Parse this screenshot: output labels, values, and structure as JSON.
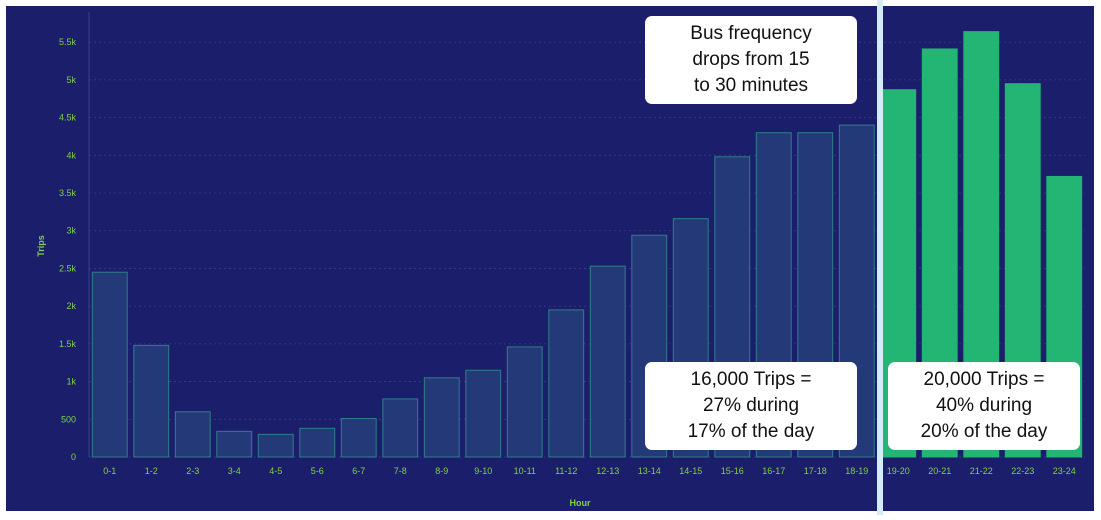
{
  "chart_data": {
    "type": "bar",
    "xlabel": "Hour",
    "ylabel": "Trips",
    "ylim": [
      0,
      5900
    ],
    "y_ticks": [
      0,
      500,
      1000,
      1500,
      2000,
      2500,
      3000,
      3500,
      4000,
      4500,
      5000,
      5500
    ],
    "y_tick_labels": [
      "0",
      "500",
      "1k",
      "1.5k",
      "2k",
      "2.5k",
      "3k",
      "3.5k",
      "4k",
      "4.5k",
      "5k",
      "5.5k"
    ],
    "categories": [
      "0-1",
      "1-2",
      "2-3",
      "3-4",
      "4-5",
      "5-6",
      "6-7",
      "7-8",
      "8-9",
      "9-10",
      "10-11",
      "11-12",
      "12-13",
      "13-14",
      "14-15",
      "15-16",
      "16-17",
      "17-18",
      "18-19",
      "19-20",
      "20-21",
      "21-22",
      "22-23",
      "23-24"
    ],
    "values": [
      2450,
      1480,
      600,
      340,
      300,
      380,
      510,
      770,
      1050,
      1150,
      1460,
      1950,
      2530,
      2940,
      3160,
      3980,
      4300,
      4300,
      4400,
      4870,
      5410,
      5640,
      4950,
      3720
    ],
    "highlight_from_index": 19,
    "grid": true,
    "annotations": [
      {
        "id": "frequency",
        "lines": [
          "Bus frequency",
          "drops from 15",
          "to 30 minutes"
        ]
      },
      {
        "id": "day-share",
        "lines": [
          "16,000 Trips =",
          "27% during",
          "17% of the day"
        ]
      },
      {
        "id": "night-share",
        "lines": [
          "20,000 Trips =",
          "40% during",
          "20% of the day"
        ]
      }
    ]
  },
  "colors": {
    "background": "#1b1f6b",
    "bar_default": "#243a78",
    "bar_default_stroke": "#2f7d8a",
    "bar_highlight": "#22b573",
    "tick_text": "#7fd14a",
    "grid": "#3a3f8a",
    "divider": "#d4ecf7",
    "callout_bg": "#ffffff",
    "callout_text": "#111111"
  }
}
